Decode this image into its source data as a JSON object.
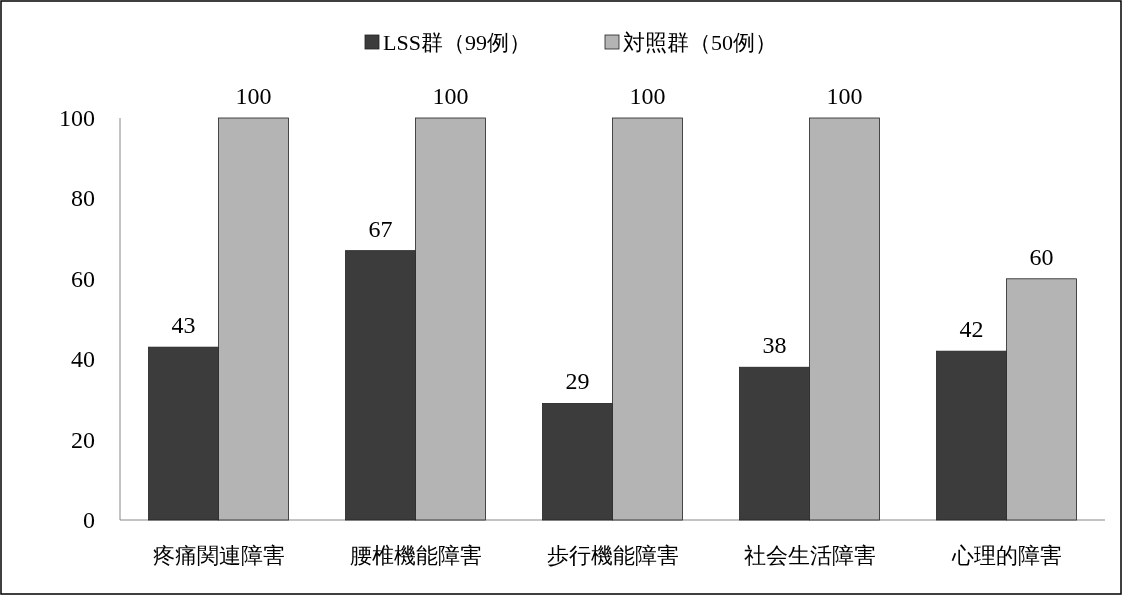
{
  "chart_data": {
    "type": "bar",
    "categories": [
      "疼痛関連障害",
      "腰椎機能障害",
      "歩行機能障害",
      "社会生活障害",
      "心理的障害"
    ],
    "series": [
      {
        "name": "LSS群（99例）",
        "color": "#3c3c3c",
        "values": [
          43,
          67,
          29,
          38,
          42
        ]
      },
      {
        "name": "対照群（50例）",
        "color": "#b4b4b4",
        "values": [
          100,
          100,
          100,
          100,
          60
        ]
      }
    ],
    "ylim": [
      0,
      100
    ],
    "yticks": [
      0,
      20,
      40,
      60,
      80,
      100
    ],
    "data_labels": true,
    "legend": "top",
    "grid": false
  }
}
